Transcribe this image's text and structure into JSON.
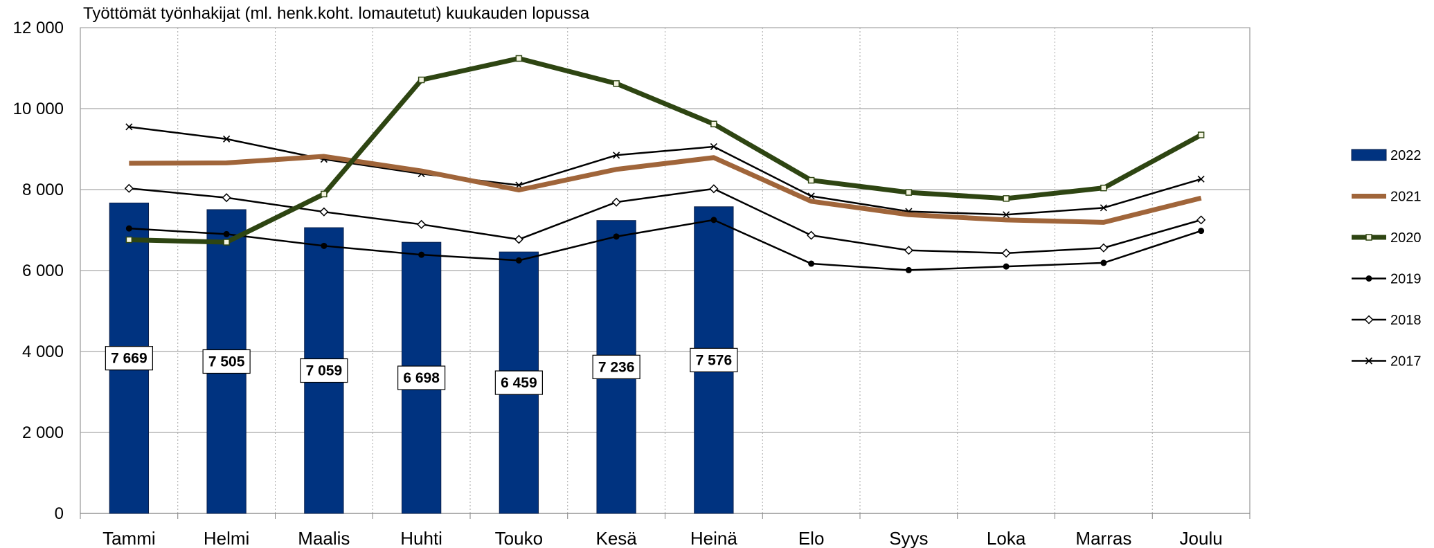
{
  "chart_data": {
    "type": "bar",
    "title": "Työttömät työnhakijat (ml. henk.koht. lomautetut) kuukauden lopussa",
    "categories": [
      "Tammi",
      "Helmi",
      "Maalis",
      "Huhti",
      "Touko",
      "Kesä",
      "Heinä",
      "Elo",
      "Syys",
      "Loka",
      "Marras",
      "Joulu"
    ],
    "ylim": [
      0,
      12000
    ],
    "yticks": [
      0,
      2000,
      4000,
      6000,
      8000,
      10000,
      12000
    ],
    "ytick_labels": [
      "0",
      "2 000",
      "4 000",
      "6 000",
      "8 000",
      "10 000",
      "12 000"
    ],
    "grid": true,
    "legend_position": "right",
    "bar_series": {
      "name": "2022",
      "color": "#003380",
      "values": [
        7669,
        7505,
        7059,
        6698,
        6459,
        7236,
        7576
      ],
      "labels": [
        "7 669",
        "7 505",
        "7 059",
        "6 698",
        "6 459",
        "7 236",
        "7 576"
      ]
    },
    "line_series": [
      {
        "name": "2021",
        "color": "#A0653A",
        "marker": "none",
        "values": [
          8650,
          8660,
          8820,
          8460,
          7990,
          8500,
          8790,
          7710,
          7380,
          7250,
          7190,
          7790
        ]
      },
      {
        "name": "2020",
        "color": "#2E4512",
        "marker": "square",
        "values": [
          6760,
          6700,
          7890,
          10710,
          11240,
          10620,
          9620,
          8230,
          7930,
          7780,
          8040,
          9350
        ]
      },
      {
        "name": "2019",
        "color": "#000000",
        "marker": "dot",
        "values": [
          7040,
          6900,
          6610,
          6390,
          6250,
          6840,
          7250,
          6170,
          6010,
          6100,
          6190,
          6980
        ]
      },
      {
        "name": "2018",
        "color": "#000000",
        "marker": "diamond",
        "values": [
          8030,
          7800,
          7450,
          7140,
          6770,
          7690,
          8020,
          6870,
          6500,
          6430,
          6560,
          7250
        ]
      },
      {
        "name": "2017",
        "color": "#000000",
        "marker": "x",
        "values": [
          9550,
          9250,
          8750,
          8390,
          8110,
          8850,
          9060,
          7840,
          7460,
          7380,
          7550,
          8260
        ]
      }
    ]
  }
}
